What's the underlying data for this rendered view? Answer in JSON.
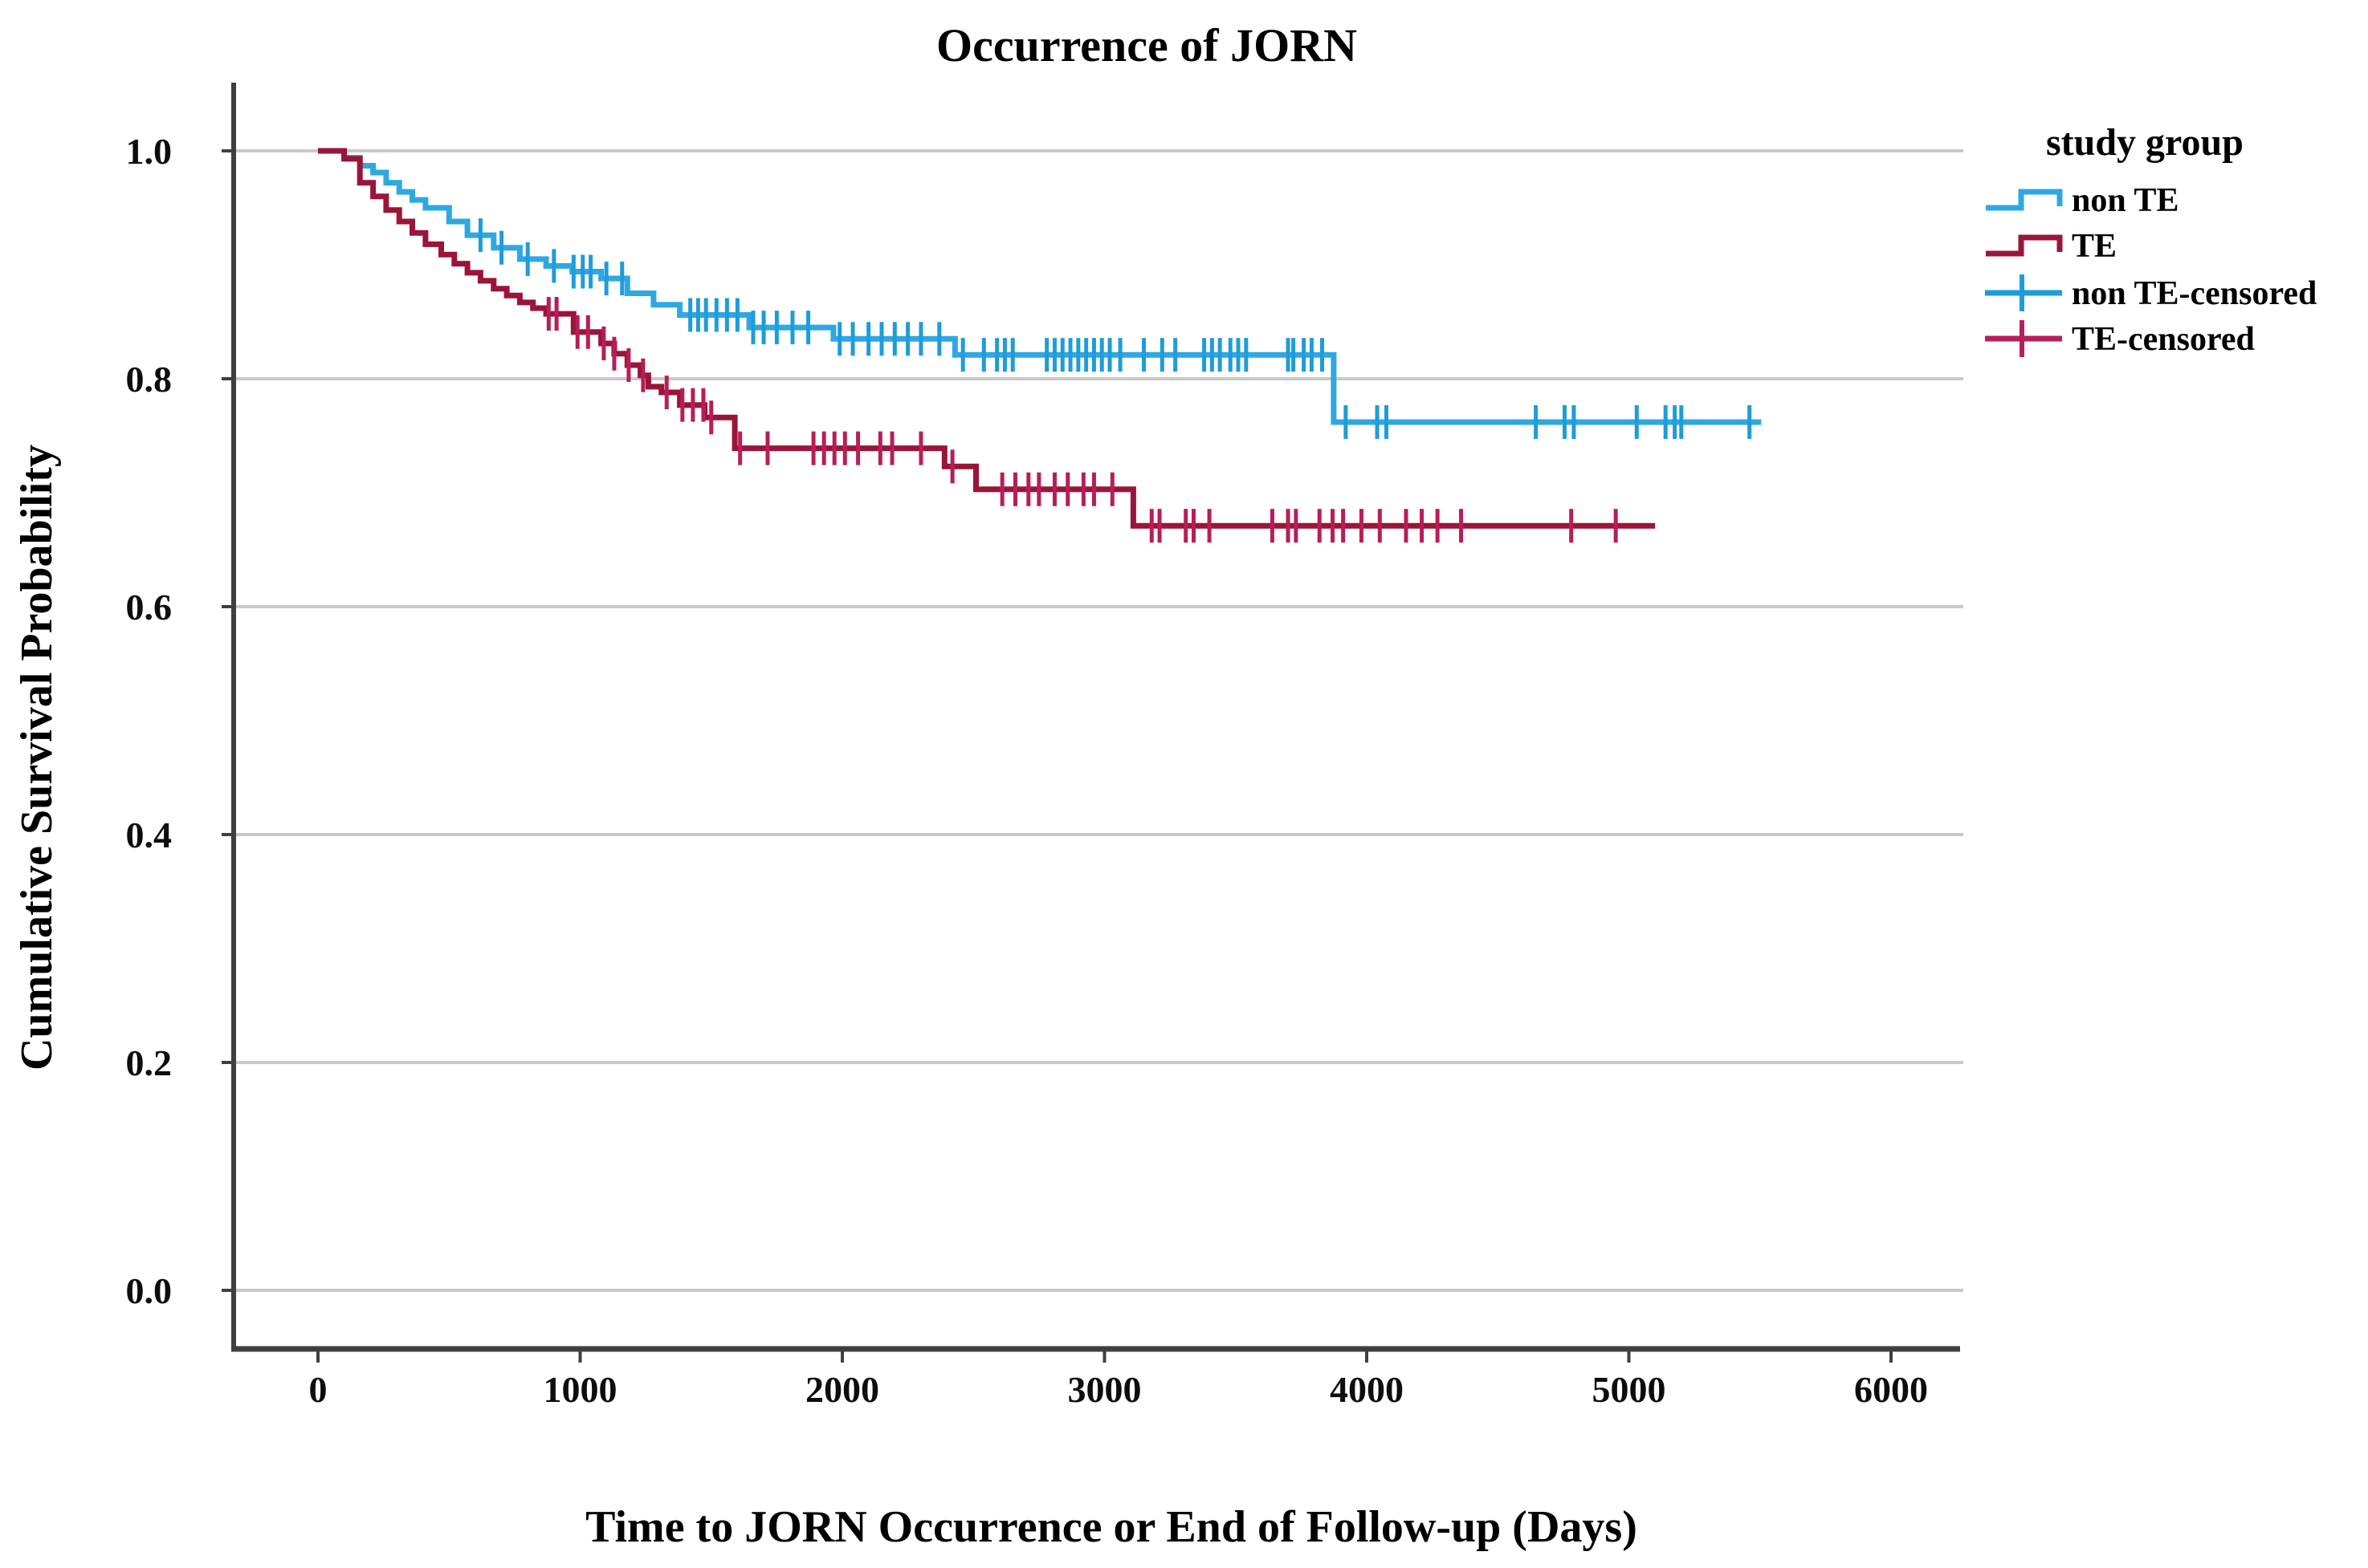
{
  "style": {
    "background": "#FFFFFF",
    "grid_color": "#C9C9C9",
    "axis_color": "#3F3F3F",
    "text_color": "#000000",
    "non_te_color": "#2FA8E1",
    "te_color": "#9A1538"
  },
  "legend": {
    "title": "study group",
    "items": [
      {
        "label": "non TE",
        "marker": "step-line-icon",
        "color": "#2FA8E1"
      },
      {
        "label": "TE",
        "marker": "step-line-icon",
        "color": "#9A1538"
      },
      {
        "label": "non TE-censored",
        "marker": "plus-line-icon",
        "color": "#1E9CDB"
      },
      {
        "label": "TE-censored",
        "marker": "plus-line-icon",
        "color": "#B71E59"
      }
    ]
  },
  "chart_data": {
    "type": "line",
    "subtype": "kaplan-meier-step",
    "title": "Occurrence of JORN",
    "xlabel": "Time to JORN Occurrence or End of Follow-up (Days)",
    "ylabel": "Cumulative Survival Probability",
    "xlim": [
      -330,
      6330
    ],
    "ylim": [
      -0.07,
      1.06
    ],
    "grid": "horizontal",
    "legend_position": "top-right",
    "x_ticks": [
      0,
      1000,
      2000,
      3000,
      4000,
      5000,
      6000
    ],
    "x_tick_labels": [
      "0",
      "1000",
      "2000",
      "3000",
      "4000",
      "5000",
      "6000"
    ],
    "y_ticks": [
      1.0,
      0.8,
      0.6,
      0.4,
      0.2,
      0.0
    ],
    "y_tick_labels": [
      "1.0",
      "0.8",
      "0.6",
      "0.4",
      "0.2",
      "0.0"
    ],
    "series": [
      {
        "name": "non TE",
        "color": "#2FA8E1",
        "censor_color": "#1E9CDB",
        "end_day": 5505,
        "steps": [
          [
            0,
            1.0
          ],
          [
            100,
            0.994
          ],
          [
            160,
            0.987
          ],
          [
            210,
            0.981
          ],
          [
            260,
            0.972
          ],
          [
            310,
            0.964
          ],
          [
            360,
            0.957
          ],
          [
            410,
            0.95
          ],
          [
            500,
            0.938
          ],
          [
            570,
            0.926
          ],
          [
            670,
            0.915
          ],
          [
            770,
            0.905
          ],
          [
            870,
            0.899
          ],
          [
            970,
            0.894
          ],
          [
            1080,
            0.888
          ],
          [
            1180,
            0.875
          ],
          [
            1280,
            0.865
          ],
          [
            1380,
            0.856
          ],
          [
            1645,
            0.845
          ],
          [
            1966,
            0.835
          ],
          [
            2430,
            0.821
          ],
          [
            3874,
            0.762
          ]
        ],
        "censored_days": [
          620,
          700,
          800,
          900,
          975,
          1010,
          1040,
          1100,
          1160,
          1420,
          1450,
          1480,
          1520,
          1560,
          1600,
          1660,
          1700,
          1750,
          1810,
          1870,
          1990,
          2040,
          2100,
          2150,
          2200,
          2250,
          2300,
          2370,
          2460,
          2540,
          2590,
          2620,
          2650,
          2780,
          2810,
          2840,
          2870,
          2900,
          2930,
          2960,
          2990,
          3020,
          3060,
          3150,
          3220,
          3270,
          3380,
          3410,
          3440,
          3480,
          3510,
          3540,
          3700,
          3720,
          3760,
          3790,
          3830,
          3920,
          4040,
          4075,
          4645,
          4755,
          4790,
          5030,
          5140,
          5175,
          5200,
          5460
        ]
      },
      {
        "name": "TE",
        "color": "#9A1538",
        "censor_color": "#B71E59",
        "end_day": 5100,
        "steps": [
          [
            0,
            1.0
          ],
          [
            100,
            0.993
          ],
          [
            160,
            0.972
          ],
          [
            210,
            0.96
          ],
          [
            260,
            0.948
          ],
          [
            310,
            0.938
          ],
          [
            360,
            0.928
          ],
          [
            410,
            0.918
          ],
          [
            470,
            0.909
          ],
          [
            520,
            0.901
          ],
          [
            570,
            0.893
          ],
          [
            620,
            0.886
          ],
          [
            670,
            0.879
          ],
          [
            720,
            0.873
          ],
          [
            770,
            0.867
          ],
          [
            820,
            0.862
          ],
          [
            870,
            0.857
          ],
          [
            975,
            0.841
          ],
          [
            1080,
            0.831
          ],
          [
            1130,
            0.822
          ],
          [
            1180,
            0.812
          ],
          [
            1230,
            0.803
          ],
          [
            1260,
            0.793
          ],
          [
            1310,
            0.788
          ],
          [
            1380,
            0.777
          ],
          [
            1475,
            0.766
          ],
          [
            1590,
            0.739
          ],
          [
            2390,
            0.723
          ],
          [
            2510,
            0.703
          ],
          [
            3110,
            0.671
          ]
        ],
        "censored_days": [
          880,
          910,
          990,
          1030,
          1090,
          1130,
          1185,
          1240,
          1330,
          1390,
          1430,
          1470,
          1500,
          1610,
          1715,
          1890,
          1930,
          1970,
          2010,
          2060,
          2145,
          2190,
          2300,
          2420,
          2610,
          2660,
          2710,
          2750,
          2810,
          2860,
          2920,
          2960,
          3030,
          3180,
          3210,
          3310,
          3340,
          3400,
          3640,
          3700,
          3730,
          3820,
          3870,
          3910,
          3980,
          4050,
          4150,
          4210,
          4270,
          4360,
          4780,
          4950
        ]
      }
    ]
  }
}
